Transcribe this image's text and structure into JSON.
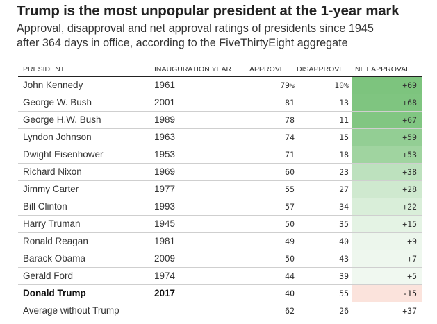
{
  "title": "Trump is the most unpopular president at the 1-year mark",
  "subtitle_lines": [
    "Approval, disapproval and net approval ratings of presidents since 1945",
    "after 364 days in office, according to the FiveThirtyEight aggregate"
  ],
  "chart_data": {
    "type": "table",
    "title": "Trump is the most unpopular president at the 1-year mark",
    "subtitle": "Approval, disapproval and net approval ratings of presidents since 1945 after 364 days in office, according to the FiveThirtyEight aggregate",
    "columns": [
      "PRESIDENT",
      "INAUGURATION YEAR",
      "APPROVE",
      "DISAPPROVE",
      "NET APPROVAL"
    ],
    "rows": [
      {
        "president": "John Kennedy",
        "year": "1961",
        "approve": "79%",
        "disapprove": "10%",
        "net": "+69",
        "net_value": 69
      },
      {
        "president": "George W. Bush",
        "year": "2001",
        "approve": "81",
        "disapprove": "13",
        "net": "+68",
        "net_value": 68
      },
      {
        "president": "George H.W. Bush",
        "year": "1989",
        "approve": "78",
        "disapprove": "11",
        "net": "+67",
        "net_value": 67
      },
      {
        "president": "Lyndon Johnson",
        "year": "1963",
        "approve": "74",
        "disapprove": "15",
        "net": "+59",
        "net_value": 59
      },
      {
        "president": "Dwight Eisenhower",
        "year": "1953",
        "approve": "71",
        "disapprove": "18",
        "net": "+53",
        "net_value": 53
      },
      {
        "president": "Richard Nixon",
        "year": "1969",
        "approve": "60",
        "disapprove": "23",
        "net": "+38",
        "net_value": 38
      },
      {
        "president": "Jimmy Carter",
        "year": "1977",
        "approve": "55",
        "disapprove": "27",
        "net": "+28",
        "net_value": 28
      },
      {
        "president": "Bill Clinton",
        "year": "1993",
        "approve": "57",
        "disapprove": "34",
        "net": "+22",
        "net_value": 22
      },
      {
        "president": "Harry Truman",
        "year": "1945",
        "approve": "50",
        "disapprove": "35",
        "net": "+15",
        "net_value": 15
      },
      {
        "president": "Ronald Reagan",
        "year": "1981",
        "approve": "49",
        "disapprove": "40",
        "net": "+9",
        "net_value": 9
      },
      {
        "president": "Barack Obama",
        "year": "2009",
        "approve": "50",
        "disapprove": "43",
        "net": "+7",
        "net_value": 7
      },
      {
        "president": "Gerald Ford",
        "year": "1974",
        "approve": "44",
        "disapprove": "39",
        "net": "+5",
        "net_value": 5
      },
      {
        "president": "Donald Trump",
        "year": "2017",
        "approve": "40",
        "disapprove": "55",
        "net": "-15",
        "net_value": -15,
        "highlight": true
      }
    ],
    "average_row": {
      "president": "Average without Trump",
      "year": "",
      "approve": "62",
      "disapprove": "26",
      "net": "+37"
    }
  },
  "colors": {
    "positive_strong": "#7dc47e",
    "positive_weak": "#f4faf4",
    "negative": "#fbe3dc"
  }
}
